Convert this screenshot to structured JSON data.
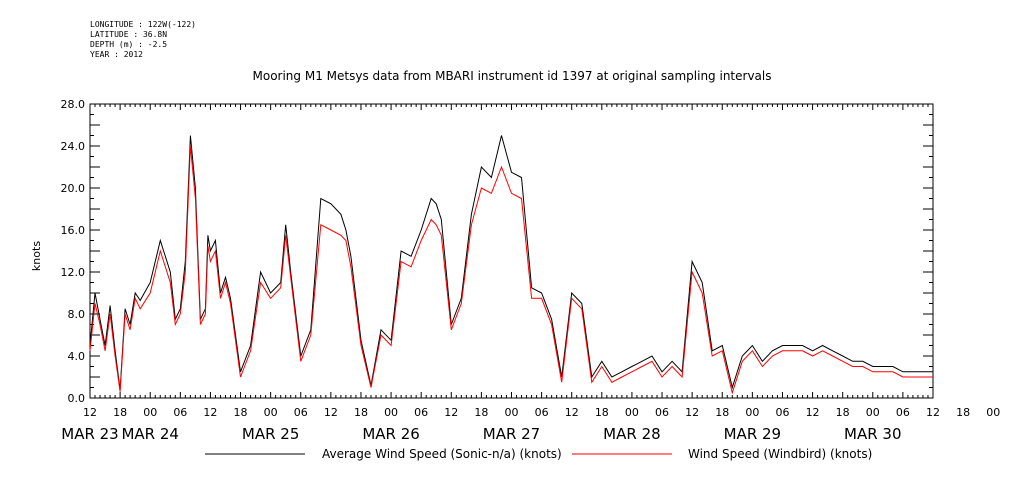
{
  "meta": {
    "longitude": "LONGITUDE : 122W(-122)",
    "latitude": "LATITUDE : 36.8N",
    "depth": "DEPTH (m) : -2.5",
    "year": "YEAR : 2012"
  },
  "chart_data": {
    "type": "line",
    "title": "Mooring M1 Metsys data from MBARI instrument id 1397 at original sampling intervals",
    "xlabel": "",
    "ylabel": "knots",
    "ylim": [
      0,
      28
    ],
    "y_ticks": [
      "0.0",
      "4.0",
      "8.0",
      "12.0",
      "16.0",
      "20.0",
      "24.0",
      "28.0"
    ],
    "x_unit": "hours since MAR 23 00",
    "xlim": [
      12,
      180
    ],
    "hour_ticks": [
      "12",
      "18",
      "00",
      "06",
      "12",
      "18",
      "00",
      "06",
      "12",
      "18",
      "00",
      "06",
      "12",
      "18",
      "00",
      "06",
      "12",
      "18",
      "00",
      "06",
      "12",
      "18",
      "00",
      "06",
      "12",
      "18",
      "00",
      "06",
      "12",
      "18",
      "00",
      "06",
      "12"
    ],
    "date_labels": [
      {
        "hour": 12,
        "label": "MAR 23"
      },
      {
        "hour": 24,
        "label": "MAR 24"
      },
      {
        "hour": 48,
        "label": "MAR 25"
      },
      {
        "hour": 72,
        "label": "MAR 26"
      },
      {
        "hour": 96,
        "label": "MAR 27"
      },
      {
        "hour": 120,
        "label": "MAR 28"
      },
      {
        "hour": 144,
        "label": "MAR 29"
      },
      {
        "hour": 168,
        "label": "MAR 30"
      }
    ],
    "grid": false,
    "legend_position": "bottom",
    "series": [
      {
        "name": "Average Wind Speed (Sonic-n/a) (knots)",
        "color": "#000000",
        "x": [
          12,
          13,
          14,
          15,
          16,
          17,
          18,
          19,
          20,
          21,
          22,
          24,
          26,
          28,
          29,
          30,
          31,
          32,
          33,
          34,
          35,
          35.5,
          36,
          37,
          38,
          39,
          40,
          42,
          44,
          46,
          48,
          50,
          51,
          52,
          54,
          56,
          58,
          60,
          62,
          63,
          64,
          66,
          68,
          70,
          72,
          74,
          76,
          78,
          80,
          81,
          82,
          84,
          86,
          88,
          90,
          92,
          94,
          96,
          98,
          100,
          102,
          104,
          106,
          108,
          110,
          112,
          114,
          116,
          118,
          120,
          122,
          124,
          126,
          128,
          130,
          132,
          134,
          136,
          138,
          140,
          142,
          144,
          146,
          148,
          150,
          152,
          154,
          156,
          158,
          160,
          162,
          164,
          166,
          168,
          170,
          172,
          174,
          176,
          178,
          180
        ],
        "values": [
          5.0,
          10.0,
          7.5,
          5.0,
          8.8,
          4.5,
          0.8,
          8.5,
          7.0,
          10.0,
          9.3,
          11.0,
          15.0,
          12.0,
          7.5,
          8.5,
          13.0,
          25.0,
          20.0,
          7.5,
          8.5,
          15.5,
          14.0,
          15.0,
          10.0,
          11.5,
          9.5,
          2.5,
          5.0,
          12.0,
          10.0,
          11.0,
          16.5,
          12.0,
          4.0,
          6.5,
          19.0,
          18.5,
          17.5,
          16.0,
          13.5,
          5.5,
          1.2,
          6.5,
          5.5,
          14.0,
          13.5,
          16.0,
          19.0,
          18.5,
          17.0,
          7.0,
          9.5,
          17.5,
          22.0,
          21.0,
          25.0,
          21.5,
          21.0,
          10.5,
          10.0,
          7.5,
          2.0,
          10.0,
          9.0,
          2.0,
          3.5,
          2.0,
          2.5,
          3.0,
          3.5,
          4.0,
          2.5,
          3.5,
          2.5,
          13.0,
          11.0,
          4.5,
          5.0,
          1.0,
          4.0,
          5.0,
          3.5,
          4.5,
          5.0,
          5.0,
          5.0,
          4.5,
          5.0,
          4.5,
          4.0,
          3.5,
          3.5,
          3.0,
          3.0,
          3.0,
          2.5,
          2.5,
          2.5,
          2.5
        ]
      },
      {
        "name": "Wind Speed (Windbird) (knots)",
        "color": "#ff0000",
        "x": [
          12,
          13,
          14,
          15,
          16,
          17,
          18,
          19,
          20,
          21,
          22,
          24,
          26,
          28,
          29,
          30,
          31,
          32,
          33,
          34,
          35,
          35.5,
          36,
          37,
          38,
          39,
          40,
          42,
          44,
          46,
          48,
          50,
          51,
          52,
          54,
          56,
          58,
          60,
          62,
          63,
          64,
          66,
          68,
          70,
          72,
          74,
          76,
          78,
          80,
          81,
          82,
          84,
          86,
          88,
          90,
          92,
          94,
          96,
          98,
          100,
          102,
          104,
          106,
          108,
          110,
          112,
          114,
          116,
          118,
          120,
          122,
          124,
          126,
          128,
          130,
          132,
          134,
          136,
          138,
          140,
          142,
          144,
          146,
          148,
          150,
          152,
          154,
          156,
          158,
          160,
          162,
          164,
          166,
          168,
          170,
          172,
          174,
          176,
          178,
          180
        ],
        "values": [
          4.5,
          9.0,
          7.0,
          4.5,
          8.0,
          4.0,
          0.6,
          8.0,
          6.5,
          9.5,
          8.5,
          10.0,
          14.0,
          11.0,
          7.0,
          8.0,
          12.0,
          24.0,
          19.0,
          7.0,
          8.0,
          14.5,
          13.0,
          14.0,
          9.5,
          11.0,
          9.0,
          2.0,
          4.5,
          11.0,
          9.5,
          10.5,
          15.5,
          11.5,
          3.5,
          6.0,
          16.5,
          16.0,
          15.5,
          15.0,
          12.5,
          5.0,
          1.0,
          6.0,
          5.0,
          13.0,
          12.5,
          15.0,
          17.0,
          16.5,
          15.5,
          6.5,
          9.0,
          16.5,
          20.0,
          19.5,
          22.0,
          19.5,
          19.0,
          9.5,
          9.5,
          7.0,
          1.5,
          9.5,
          8.5,
          1.5,
          3.0,
          1.5,
          2.0,
          2.5,
          3.0,
          3.5,
          2.0,
          3.0,
          2.0,
          12.0,
          10.0,
          4.0,
          4.5,
          0.5,
          3.5,
          4.5,
          3.0,
          4.0,
          4.5,
          4.5,
          4.5,
          4.0,
          4.5,
          4.0,
          3.5,
          3.0,
          3.0,
          2.5,
          2.5,
          2.5,
          2.0,
          2.0,
          2.0,
          2.0
        ]
      }
    ]
  }
}
